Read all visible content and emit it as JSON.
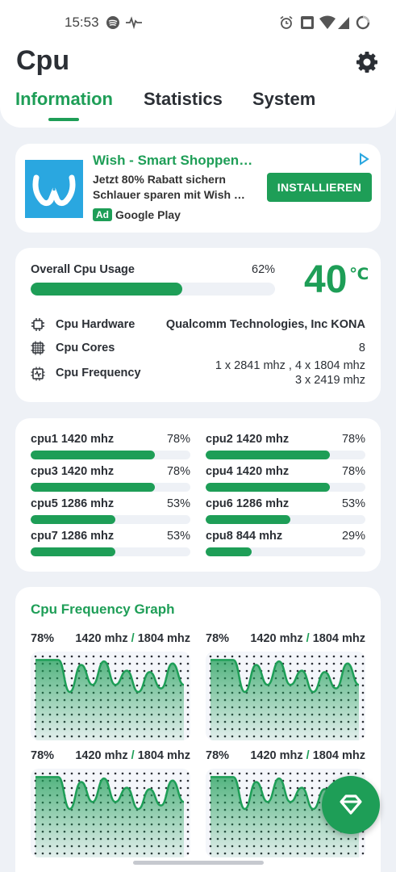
{
  "status_bar": {
    "time": "15:53"
  },
  "header": {
    "title": "Cpu",
    "tabs": [
      {
        "label": "Information",
        "active": true
      },
      {
        "label": "Statistics",
        "active": false
      },
      {
        "label": "System",
        "active": false
      }
    ]
  },
  "ad": {
    "title": "Wish - Smart Shoppen…",
    "line1": "Jetzt 80% Rabatt sichern",
    "line2": "Schlauer sparen mit Wish …",
    "badge": "Ad",
    "store": "Google Play",
    "button": "INSTALLIEREN"
  },
  "overview": {
    "usage_label": "Overall Cpu Usage",
    "usage_percent_text": "62%",
    "usage_fraction": 0.62,
    "temperature": "40",
    "temperature_unit": "℃",
    "rows": [
      {
        "label": "Cpu Hardware",
        "value": "Qualcomm Technologies, Inc KONA",
        "icon": "chip-icon"
      },
      {
        "label": "Cpu Cores",
        "value": "8",
        "icon": "cores-icon"
      },
      {
        "label": "Cpu Frequency",
        "value": "1 x 2841 mhz , 4 x 1804 mhz",
        "value2": "3 x 2419 mhz",
        "icon": "frequency-icon"
      }
    ]
  },
  "cores": [
    {
      "name": "cpu1",
      "freq": "1420 mhz",
      "pct": "78%",
      "fraction": 0.78
    },
    {
      "name": "cpu2",
      "freq": "1420 mhz",
      "pct": "78%",
      "fraction": 0.78
    },
    {
      "name": "cpu3",
      "freq": "1420 mhz",
      "pct": "78%",
      "fraction": 0.78
    },
    {
      "name": "cpu4",
      "freq": "1420 mhz",
      "pct": "78%",
      "fraction": 0.78
    },
    {
      "name": "cpu5",
      "freq": "1286 mhz",
      "pct": "53%",
      "fraction": 0.53
    },
    {
      "name": "cpu6",
      "freq": "1286 mhz",
      "pct": "53%",
      "fraction": 0.53
    },
    {
      "name": "cpu7",
      "freq": "1286 mhz",
      "pct": "53%",
      "fraction": 0.53
    },
    {
      "name": "cpu8",
      "freq": "844 mhz",
      "pct": "29%",
      "fraction": 0.29
    }
  ],
  "graph": {
    "title": "Cpu Frequency Graph",
    "panels": [
      {
        "pct": "78%",
        "cur": "1420 mhz",
        "max": "1804 mhz"
      },
      {
        "pct": "78%",
        "cur": "1420 mhz",
        "max": "1804 mhz"
      },
      {
        "pct": "78%",
        "cur": "1420 mhz",
        "max": "1804 mhz"
      },
      {
        "pct": "78%",
        "cur": "1420 mhz",
        "max": "1804 mhz"
      }
    ],
    "series": [
      95,
      95,
      95,
      50,
      88,
      60,
      93,
      60,
      80,
      50,
      78,
      55,
      90,
      60
    ]
  },
  "colors": {
    "accent": "#1e9e57",
    "background": "#eef1f6",
    "card": "#ffffff"
  }
}
